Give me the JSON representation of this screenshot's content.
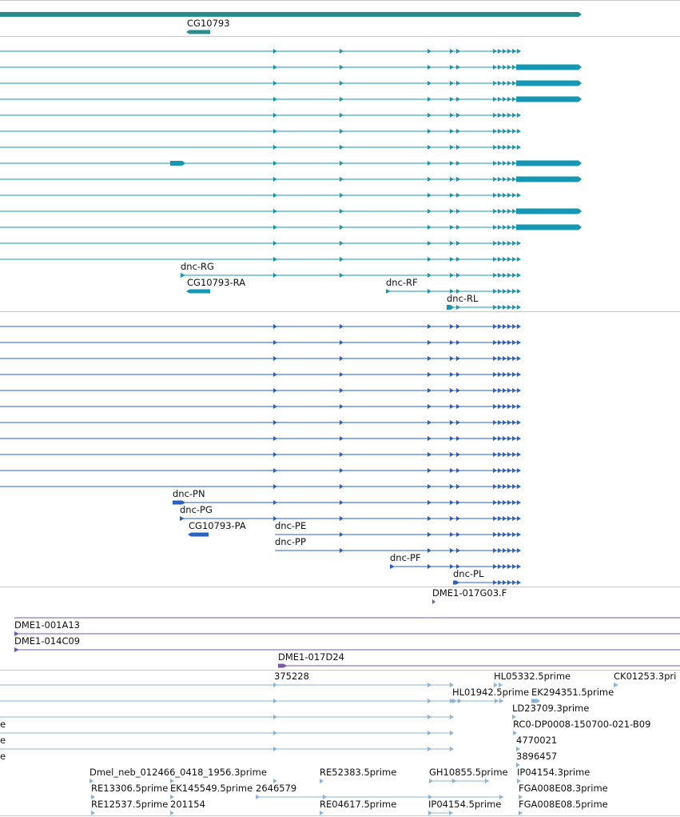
{
  "colors": {
    "gene": "#2a8c8a",
    "transcript": "#1698b5",
    "protein": "#2a62c4",
    "clone_end": "#7a57a8",
    "cdna": "#8bb4db",
    "separator": "#c8c8c8"
  },
  "tracks": {
    "genes": {
      "labels": [
        "CG10793"
      ]
    },
    "transcripts": {
      "labels": [
        "dnc-RG",
        "CG10793-RA",
        "dnc-RF",
        "dnc-RL"
      ]
    },
    "proteins": {
      "labels": [
        "dnc-PN",
        "dnc-PG",
        "CG10793-PA",
        "dnc-PE",
        "dnc-PP",
        "dnc-PF",
        "dnc-PL"
      ]
    },
    "clone_ends": {
      "labels": [
        "DME1-017G03.F",
        "DME1-001A13",
        "DME1-014C09",
        "DME1-017D24"
      ]
    },
    "cdna_reads": {
      "labels": [
        "375228",
        "HL05332.5prime",
        "CK01253.3pri",
        "HL01942.5prime",
        "EK294351.5prime",
        "LD23709.3prime",
        "e",
        "RC0-DP0008-150700-021-B09",
        "e",
        "4770021",
        "e",
        "3896457",
        "Dmel_neb_012466_0418_1956.3prime",
        "RE52383.5prime",
        "GH10855.5prime",
        "IP04154.3prime",
        "RE13306.5prime",
        "EK145549.5prime",
        "2646579",
        "FGA008E08.3prime",
        "RE12537.5prime",
        "201154",
        "RE04617.5prime",
        "IP04154.5prime",
        "FGA008E08.5prime"
      ]
    }
  }
}
